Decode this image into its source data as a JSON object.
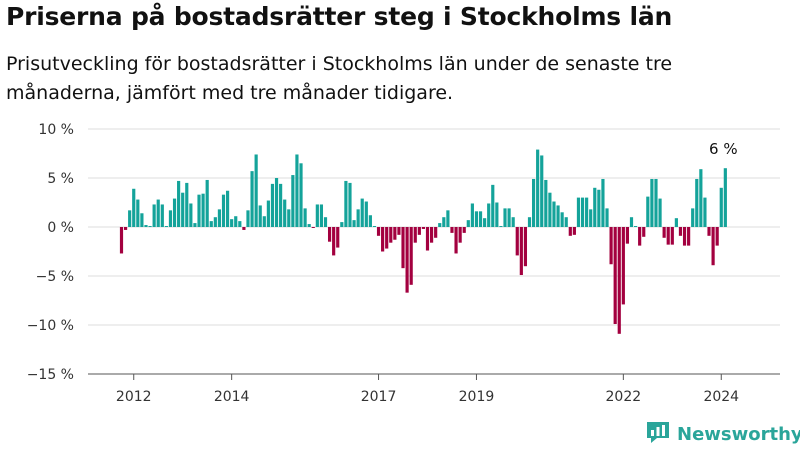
{
  "title": "Priserna på bostadsrätter steg i Stockholms län",
  "subtitle": "Prisutveckling för bostadsrätter i Stockholms län under de senaste tre månaderna, jämfört med tre månader tidigare.",
  "brand": {
    "name": "Newsworthy",
    "icon": "newsworthy-bar-chart-icon",
    "color": "#2aa59a"
  },
  "colors": {
    "positive": "#14a39a",
    "negative": "#a3003f",
    "grid": "#dddddd",
    "axis": "#555555"
  },
  "chart_data": {
    "type": "bar",
    "ylim": [
      -15,
      10
    ],
    "yticks": [
      10,
      5,
      0,
      -5,
      -10,
      -15
    ],
    "ytick_labels": [
      "10 %",
      "5 %",
      "0 %",
      "−5 %",
      "−10 %",
      "−15 %"
    ],
    "xtick_labels": [
      {
        "year": 2012,
        "label": "2012"
      },
      {
        "year": 2014,
        "label": "2014"
      },
      {
        "year": 2017,
        "label": "2017"
      },
      {
        "year": 2019,
        "label": "2019"
      },
      {
        "year": 2022,
        "label": "2022"
      },
      {
        "year": 2024,
        "label": "2024"
      }
    ],
    "start": "2011-10",
    "values": [
      -2.7,
      -0.3,
      1.7,
      3.9,
      2.8,
      1.4,
      0.2,
      0.1,
      2.3,
      2.8,
      2.3,
      0.1,
      1.7,
      2.9,
      4.7,
      3.5,
      4.5,
      2.4,
      0.4,
      3.3,
      3.4,
      4.8,
      0.6,
      1.0,
      1.8,
      3.3,
      3.7,
      0.8,
      1.1,
      0.6,
      -0.3,
      1.7,
      5.7,
      7.4,
      2.2,
      1.1,
      2.7,
      4.4,
      5.0,
      4.4,
      2.8,
      1.8,
      5.3,
      7.4,
      6.5,
      1.9,
      0.3,
      -0.1,
      2.3,
      2.3,
      1.0,
      -1.5,
      -2.9,
      -2.1,
      0.5,
      4.7,
      4.5,
      0.7,
      1.8,
      2.9,
      2.6,
      1.2,
      0.1,
      -0.9,
      -2.5,
      -2.2,
      -1.6,
      -1.3,
      -0.8,
      -4.2,
      -6.7,
      -5.9,
      -1.6,
      -0.8,
      -0.2,
      -2.4,
      -1.6,
      -1.1,
      0.4,
      1.0,
      1.7,
      -0.6,
      -2.7,
      -1.6,
      -0.6,
      0.7,
      2.4,
      1.6,
      1.6,
      0.9,
      2.4,
      4.3,
      2.5,
      0.1,
      1.9,
      1.9,
      1.0,
      -2.9,
      -4.9,
      -4.0,
      1.0,
      4.9,
      7.9,
      7.3,
      4.8,
      3.5,
      2.6,
      2.2,
      1.5,
      1.0,
      -0.9,
      -0.8,
      3.0,
      3.0,
      3.0,
      1.8,
      4.0,
      3.8,
      4.9,
      1.9,
      -3.8,
      -9.9,
      -10.9,
      -7.9,
      -1.7,
      1.0,
      0.1,
      -1.9,
      -1.0,
      3.1,
      4.9,
      4.9,
      2.9,
      -1.1,
      -1.8,
      -1.8,
      0.9,
      -0.9,
      -1.9,
      -1.9,
      1.9,
      4.9,
      5.9,
      3.0,
      -0.9,
      -3.9,
      -1.9,
      4.0,
      6.0
    ],
    "annotations": [
      {
        "index": 148,
        "text": "6 %"
      }
    ]
  }
}
